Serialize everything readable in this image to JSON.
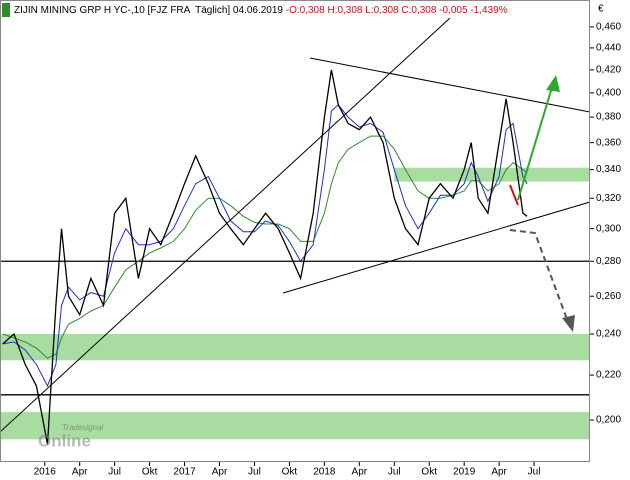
{
  "chart_data": {
    "type": "line",
    "title": "ZIJIN MINING GRP H YC-,10 [FJZ FRA  Täglich] 04.06.2019",
    "title_stats": "-O:0,308 H:0,308 L:0,308 C:0,308 -0,005 -1,439%",
    "currency": "€",
    "watermark": "Tradesignal",
    "watermark_sub": "Online",
    "log_scale": true,
    "xlim": [
      2015.68,
      2019.9
    ],
    "ylim": [
      0.183,
      0.487
    ],
    "xticks": [
      2016,
      {
        "value": 2016.25,
        "label": "Apr"
      },
      {
        "value": 2016.5,
        "label": "Jul"
      },
      {
        "value": 2016.75,
        "label": "Okt"
      },
      2017,
      {
        "value": 2017.25,
        "label": "Apr"
      },
      {
        "value": 2017.5,
        "label": "Jul"
      },
      {
        "value": 2017.75,
        "label": "Okt"
      },
      2018,
      {
        "value": 2018.25,
        "label": "Apr"
      },
      {
        "value": 2018.5,
        "label": "Jul"
      },
      {
        "value": 2018.75,
        "label": "Okt"
      },
      2019,
      {
        "value": 2019.25,
        "label": "Apr"
      },
      {
        "value": 2019.5,
        "label": "Jul"
      }
    ],
    "yticks": [
      {
        "value": 0.2,
        "label": "0,200"
      },
      {
        "value": 0.22,
        "label": "0,220"
      },
      {
        "value": 0.24,
        "label": "0,240"
      },
      {
        "value": 0.26,
        "label": "0,260"
      },
      {
        "value": 0.28,
        "label": "0,280"
      },
      {
        "value": 0.3,
        "label": "0,300"
      },
      {
        "value": 0.32,
        "label": "0,320"
      },
      {
        "value": 0.34,
        "label": "0,340"
      },
      {
        "value": 0.36,
        "label": "0,360"
      },
      {
        "value": 0.38,
        "label": "0,380"
      },
      {
        "value": 0.4,
        "label": "0,400"
      },
      {
        "value": 0.42,
        "label": "0,420"
      },
      {
        "value": 0.44,
        "label": "0,440"
      },
      {
        "value": 0.46,
        "label": "0,460"
      }
    ],
    "x": [
      2015.7,
      2015.78,
      2015.86,
      2015.94,
      2016.02,
      2016.08,
      2016.12,
      2016.17,
      2016.25,
      2016.33,
      2016.42,
      2016.5,
      2016.58,
      2016.67,
      2016.75,
      2016.83,
      2016.92,
      2017.0,
      2017.08,
      2017.17,
      2017.25,
      2017.33,
      2017.42,
      2017.5,
      2017.58,
      2017.67,
      2017.75,
      2017.83,
      2017.92,
      2018.0,
      2018.05,
      2018.1,
      2018.17,
      2018.25,
      2018.33,
      2018.42,
      2018.5,
      2018.58,
      2018.67,
      2018.75,
      2018.83,
      2018.92,
      2019.0,
      2019.05,
      2019.1,
      2019.17,
      2019.25,
      2019.3,
      2019.35,
      2019.42,
      2019.45
    ],
    "series": [
      {
        "color": "#000000",
        "values": [
          0.235,
          0.24,
          0.225,
          0.215,
          0.19,
          0.255,
          0.3,
          0.26,
          0.25,
          0.27,
          0.255,
          0.31,
          0.32,
          0.27,
          0.3,
          0.29,
          0.31,
          0.33,
          0.35,
          0.33,
          0.31,
          0.3,
          0.29,
          0.3,
          0.31,
          0.3,
          0.285,
          0.27,
          0.31,
          0.38,
          0.42,
          0.39,
          0.375,
          0.37,
          0.38,
          0.36,
          0.32,
          0.3,
          0.29,
          0.32,
          0.33,
          0.32,
          0.34,
          0.36,
          0.32,
          0.31,
          0.36,
          0.395,
          0.36,
          0.31,
          0.308
        ]
      },
      {
        "color": "#1a2fd0",
        "values": [
          0.235,
          0.236,
          0.232,
          0.225,
          0.215,
          0.225,
          0.255,
          0.265,
          0.258,
          0.262,
          0.26,
          0.285,
          0.3,
          0.29,
          0.29,
          0.292,
          0.3,
          0.315,
          0.33,
          0.335,
          0.32,
          0.305,
          0.298,
          0.298,
          0.305,
          0.302,
          0.292,
          0.28,
          0.29,
          0.34,
          0.385,
          0.39,
          0.38,
          0.372,
          0.375,
          0.368,
          0.34,
          0.315,
          0.3,
          0.31,
          0.322,
          0.322,
          0.33,
          0.345,
          0.335,
          0.318,
          0.335,
          0.37,
          0.375,
          0.335,
          0.33
        ]
      },
      {
        "color": "#2e8b2e",
        "values": [
          0.24,
          0.238,
          0.236,
          0.233,
          0.228,
          0.23,
          0.238,
          0.245,
          0.248,
          0.252,
          0.255,
          0.265,
          0.275,
          0.28,
          0.285,
          0.288,
          0.292,
          0.3,
          0.312,
          0.32,
          0.32,
          0.315,
          0.308,
          0.304,
          0.303,
          0.303,
          0.3,
          0.292,
          0.292,
          0.31,
          0.33,
          0.345,
          0.355,
          0.36,
          0.365,
          0.365,
          0.355,
          0.34,
          0.325,
          0.32,
          0.32,
          0.322,
          0.325,
          0.332,
          0.332,
          0.325,
          0.33,
          0.34,
          0.345,
          0.34,
          0.338
        ]
      }
    ],
    "zones": [
      {
        "x": [
          2018.5,
          2019.9
        ],
        "y": [
          0.3315,
          0.3414
        ],
        "color": "#a8dca0"
      },
      {
        "x": [
          2015.68,
          2019.9
        ],
        "y": [
          0.227,
          0.24
        ],
        "color": "#a8dca0"
      },
      {
        "x": [
          2015.68,
          2019.9
        ],
        "y": [
          0.192,
          0.2034
        ],
        "color": "#a8dca0"
      }
    ],
    "levels": [
      0.28,
      0.211
    ]
  }
}
